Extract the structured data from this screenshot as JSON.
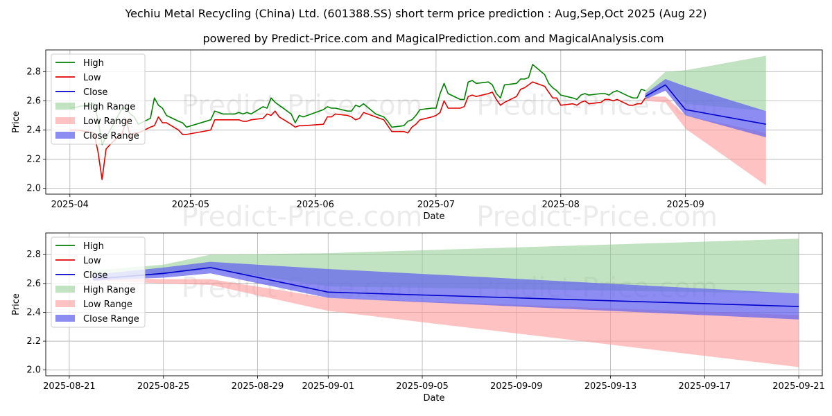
{
  "title": "Yechiu Metal Recycling (China) Ltd. (601388.SS) short term price prediction : Aug,Sep,Oct 2025 (Aug 22)",
  "subtitle": "powered by Predict-Price.com and MagicalPrediction.com and MagicalAnalysis.com",
  "watermark": "Predict-Price.com",
  "colors": {
    "high": "#008000",
    "low": "#e00000",
    "close": "#0000cc",
    "high_range": "#8fcc8f",
    "low_range": "#ff9999",
    "close_range": "#6666ee"
  },
  "legend": {
    "high": "High",
    "low": "Low",
    "close": "Close",
    "high_range": "High Range",
    "low_range": "Low Range",
    "close_range": "Close Range"
  },
  "chart_data": [
    {
      "type": "line",
      "xlabel": "Date",
      "ylabel": "Price",
      "xlim": [
        "2025-03-26",
        "2025-10-05"
      ],
      "ylim": [
        1.96,
        2.95
      ],
      "x_ticks": [
        "2025-04",
        "2025-05",
        "2025-06",
        "2025-07",
        "2025-08",
        "2025-09"
      ],
      "y_ticks": [
        "2.0",
        "2.2",
        "2.4",
        "2.6",
        "2.8"
      ],
      "grid": true,
      "legend_position": "upper-left",
      "history": {
        "dates": [
          "2025-04-01",
          "2025-04-03",
          "2025-04-07",
          "2025-04-08",
          "2025-04-09",
          "2025-04-10",
          "2025-04-11",
          "2025-04-14",
          "2025-04-15",
          "2025-04-16",
          "2025-04-17",
          "2025-04-18",
          "2025-04-21",
          "2025-04-22",
          "2025-04-23",
          "2025-04-24",
          "2025-04-25",
          "2025-04-28",
          "2025-04-29",
          "2025-04-30",
          "2025-05-06",
          "2025-05-07",
          "2025-05-08",
          "2025-05-09",
          "2025-05-12",
          "2025-05-13",
          "2025-05-14",
          "2025-05-15",
          "2025-05-16",
          "2025-05-19",
          "2025-05-20",
          "2025-05-21",
          "2025-05-22",
          "2025-05-23",
          "2025-05-26",
          "2025-05-27",
          "2025-05-28",
          "2025-05-29",
          "2025-06-03",
          "2025-06-04",
          "2025-06-05",
          "2025-06-06",
          "2025-06-09",
          "2025-06-10",
          "2025-06-11",
          "2025-06-12",
          "2025-06-13",
          "2025-06-16",
          "2025-06-17",
          "2025-06-18",
          "2025-06-19",
          "2025-06-20",
          "2025-06-23",
          "2025-06-24",
          "2025-06-25",
          "2025-06-26",
          "2025-06-27",
          "2025-06-30",
          "2025-07-01",
          "2025-07-02",
          "2025-07-03",
          "2025-07-04",
          "2025-07-07",
          "2025-07-08",
          "2025-07-09",
          "2025-07-10",
          "2025-07-11",
          "2025-07-14",
          "2025-07-15",
          "2025-07-16",
          "2025-07-17",
          "2025-07-18",
          "2025-07-21",
          "2025-07-22",
          "2025-07-23",
          "2025-07-24",
          "2025-07-25",
          "2025-07-28",
          "2025-07-29",
          "2025-07-30",
          "2025-07-31",
          "2025-08-01",
          "2025-08-04",
          "2025-08-05",
          "2025-08-06",
          "2025-08-07",
          "2025-08-08",
          "2025-08-11",
          "2025-08-12",
          "2025-08-13",
          "2025-08-14",
          "2025-08-15",
          "2025-08-18",
          "2025-08-19",
          "2025-08-20",
          "2025-08-21",
          "2025-08-22"
        ],
        "high": [
          2.55,
          2.56,
          2.58,
          2.47,
          2.3,
          2.35,
          2.4,
          2.55,
          2.55,
          2.51,
          2.49,
          2.44,
          2.48,
          2.62,
          2.57,
          2.55,
          2.5,
          2.46,
          2.45,
          2.42,
          2.47,
          2.53,
          2.52,
          2.51,
          2.51,
          2.52,
          2.51,
          2.52,
          2.51,
          2.56,
          2.55,
          2.62,
          2.59,
          2.57,
          2.51,
          2.45,
          2.5,
          2.49,
          2.54,
          2.56,
          2.55,
          2.55,
          2.53,
          2.53,
          2.57,
          2.56,
          2.58,
          2.51,
          2.5,
          2.49,
          2.46,
          2.42,
          2.43,
          2.46,
          2.47,
          2.5,
          2.54,
          2.55,
          2.55,
          2.65,
          2.72,
          2.65,
          2.61,
          2.61,
          2.73,
          2.74,
          2.72,
          2.73,
          2.71,
          2.65,
          2.62,
          2.71,
          2.72,
          2.75,
          2.75,
          2.76,
          2.85,
          2.78,
          2.72,
          2.69,
          2.67,
          2.64,
          2.62,
          2.61,
          2.64,
          2.65,
          2.64,
          2.65,
          2.65,
          2.64,
          2.66,
          2.67,
          2.63,
          2.62,
          2.62,
          2.68,
          2.67
        ],
        "low": [
          2.4,
          2.4,
          2.38,
          2.25,
          2.06,
          2.27,
          2.3,
          2.38,
          2.47,
          2.35,
          2.38,
          2.38,
          2.42,
          2.43,
          2.49,
          2.45,
          2.45,
          2.4,
          2.37,
          2.37,
          2.4,
          2.47,
          2.47,
          2.47,
          2.47,
          2.47,
          2.46,
          2.46,
          2.47,
          2.48,
          2.51,
          2.5,
          2.53,
          2.49,
          2.44,
          2.42,
          2.43,
          2.43,
          2.44,
          2.49,
          2.49,
          2.51,
          2.5,
          2.49,
          2.47,
          2.48,
          2.52,
          2.49,
          2.48,
          2.47,
          2.43,
          2.39,
          2.39,
          2.38,
          2.42,
          2.44,
          2.47,
          2.49,
          2.5,
          2.52,
          2.6,
          2.55,
          2.55,
          2.56,
          2.63,
          2.64,
          2.63,
          2.65,
          2.66,
          2.61,
          2.57,
          2.59,
          2.63,
          2.68,
          2.69,
          2.71,
          2.73,
          2.7,
          2.66,
          2.62,
          2.62,
          2.57,
          2.58,
          2.57,
          2.59,
          2.6,
          2.58,
          2.59,
          2.61,
          2.61,
          2.6,
          2.61,
          2.57,
          2.57,
          2.58,
          2.58,
          2.62
        ]
      },
      "forecast": {
        "dates": [
          "2025-08-22",
          "2025-08-27",
          "2025-09-01",
          "2025-09-21"
        ],
        "close": [
          2.63,
          2.71,
          2.54,
          2.44
        ],
        "close_range_upper": [
          2.65,
          2.75,
          2.7,
          2.53
        ],
        "close_range_lower": [
          2.61,
          2.67,
          2.5,
          2.35
        ],
        "high_range_upper": [
          2.67,
          2.8,
          2.81,
          2.91
        ],
        "high_range_lower": [
          2.61,
          2.7,
          2.58,
          2.53
        ],
        "low_range_upper": [
          2.63,
          2.63,
          2.5,
          2.38
        ],
        "low_range_lower": [
          2.6,
          2.59,
          2.41,
          2.02
        ]
      }
    },
    {
      "type": "line",
      "xlabel": "Date",
      "ylabel": "Price",
      "xlim": [
        "2025-08-20",
        "2025-09-22"
      ],
      "ylim": [
        1.96,
        2.95
      ],
      "x_ticks": [
        "2025-08-21",
        "2025-08-25",
        "2025-08-29",
        "2025-09-01",
        "2025-09-05",
        "2025-09-09",
        "2025-09-13",
        "2025-09-17",
        "2025-09-21"
      ],
      "y_ticks": [
        "2.0",
        "2.2",
        "2.4",
        "2.6",
        "2.8"
      ],
      "grid": true,
      "legend_position": "upper-left",
      "forecast": {
        "dates": [
          "2025-08-22",
          "2025-08-25",
          "2025-08-27",
          "2025-09-01",
          "2025-09-21"
        ],
        "close": [
          2.63,
          2.67,
          2.71,
          2.54,
          2.44
        ],
        "close_range_upper": [
          2.66,
          2.71,
          2.75,
          2.7,
          2.53
        ],
        "close_range_lower": [
          2.62,
          2.64,
          2.67,
          2.5,
          2.35
        ],
        "high_range_upper": [
          2.69,
          2.73,
          2.8,
          2.81,
          2.91
        ],
        "high_range_lower": [
          2.62,
          2.66,
          2.7,
          2.58,
          2.53
        ],
        "low_range_upper": [
          2.64,
          2.63,
          2.63,
          2.5,
          2.38
        ],
        "low_range_lower": [
          2.62,
          2.6,
          2.59,
          2.41,
          2.02
        ]
      }
    }
  ]
}
